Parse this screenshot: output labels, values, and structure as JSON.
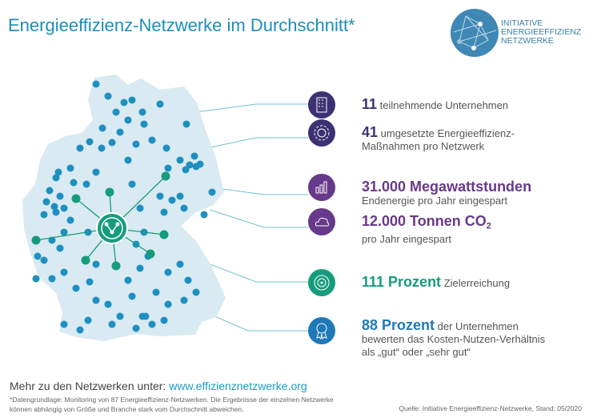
{
  "title": "Energieeffizienz-Netzwerke im Durchschnitt*",
  "logo": {
    "line1": "INITIATIVE",
    "line2": "ENERGIEEFFIZIENZ",
    "line3": "NETZWERKE"
  },
  "stats": [
    {
      "value": "11",
      "text": "teilnehmende Unternehmen",
      "icon": "building-icon",
      "color": "#3d3173"
    },
    {
      "value": "41",
      "text": "umgesetzte Energieeffizienz-",
      "text2": "Maßnahmen pro Netzwerk",
      "icon": "gear-icon",
      "color": "#3d3173"
    },
    {
      "value": "31.000 Megawattstunden",
      "text2": "Endenergie pro Jahr eingespart",
      "icon": "bar-chart-icon",
      "color": "#67398a"
    },
    {
      "value": "12.000 Tonnen CO",
      "sub": "2",
      "text2": "pro Jahr eingespart",
      "icon": "cloud-icon",
      "color": "#67398a"
    },
    {
      "value": "111 Prozent",
      "text": "Zielerreichung",
      "icon": "target-icon",
      "color": "#169c7c"
    },
    {
      "value": "88 Prozent",
      "text": "der Unternehmen",
      "text2": "bewerten das Kosten-Nutzen-Verhältnis",
      "text3": "als „gut“ oder „sehr gut“",
      "icon": "award-icon",
      "color": "#1f78b8"
    }
  ],
  "more": {
    "label": "Mehr zu den Netzwerken unter:",
    "link": "www.effizienznetzwerke.org"
  },
  "footnote": {
    "line1": "*Datengrundlage: Monitoring von 87 Energieeffizienz-Netzwerken. Die Ergebnisse der einzelnen Netzwerke",
    "line2": "können abhängig von Größe und Branche stark vom Durchschnitt abweichen."
  },
  "source": "Quelle: Initiative Energieeffizienz-Netzwerke, Stand: 05/2020"
}
